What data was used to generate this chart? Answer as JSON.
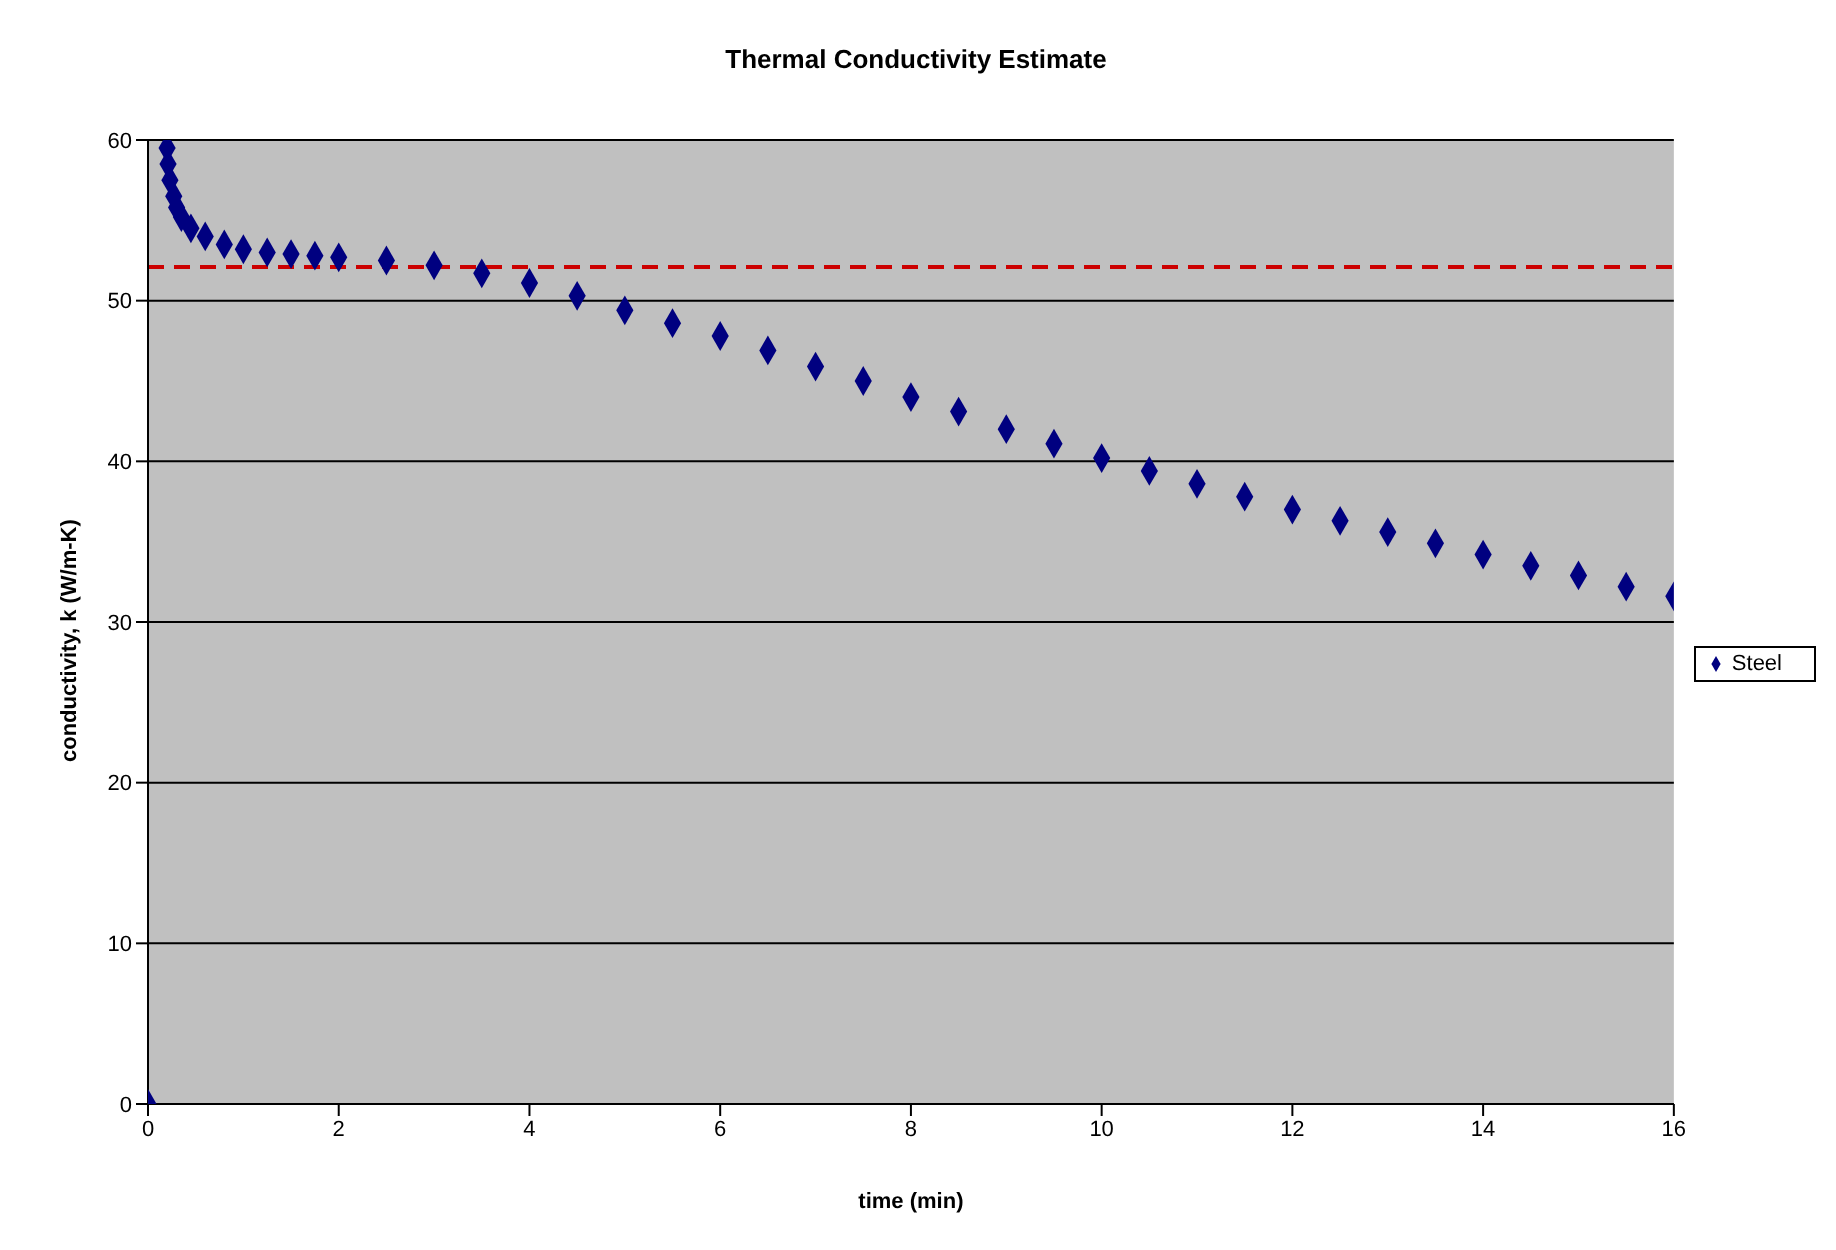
{
  "chart_data": {
    "type": "scatter",
    "title": "Thermal Conductivity Estimate",
    "xlabel": "time (min)",
    "ylabel": "conductivity, k (W/m-K)",
    "xlim": [
      0,
      16
    ],
    "xticks": [
      0,
      2,
      4,
      6,
      8,
      10,
      12,
      14,
      16
    ],
    "ylim": [
      0,
      60
    ],
    "yticks": [
      0,
      10,
      20,
      30,
      40,
      50,
      60
    ],
    "grid": "y",
    "legend": "right",
    "marker": "diamond",
    "ref_lines": [
      {
        "axis": "y",
        "value": 52.1,
        "color": "#cc0000",
        "line_style": "dashed"
      }
    ],
    "series": [
      {
        "name": "Steel",
        "color": "#000080",
        "x": [
          0,
          0.2,
          0.21,
          0.23,
          0.27,
          0.3,
          0.35,
          0.45,
          0.6,
          0.8,
          1,
          1.25,
          1.5,
          1.75,
          2,
          2.5,
          3,
          3.5,
          4,
          4.5,
          5,
          5.5,
          6,
          6.5,
          7,
          7.5,
          8,
          8.5,
          9,
          9.5,
          10,
          10.5,
          11,
          11.5,
          12,
          12.5,
          13,
          13.5,
          14,
          14.5,
          15,
          15.5,
          16
        ],
        "values": [
          0,
          59.5,
          58.5,
          57.5,
          56.5,
          55.8,
          55.2,
          54.5,
          54,
          53.5,
          53.2,
          53,
          52.9,
          52.8,
          52.7,
          52.5,
          52.2,
          51.7,
          51.1,
          50.3,
          49.4,
          48.6,
          47.8,
          46.9,
          45.9,
          45,
          44,
          43.1,
          42,
          41.1,
          40.2,
          39.4,
          38.6,
          37.8,
          37,
          36.3,
          35.6,
          34.9,
          34.2,
          33.5,
          32.9,
          32.2,
          31.6
        ]
      }
    ]
  }
}
